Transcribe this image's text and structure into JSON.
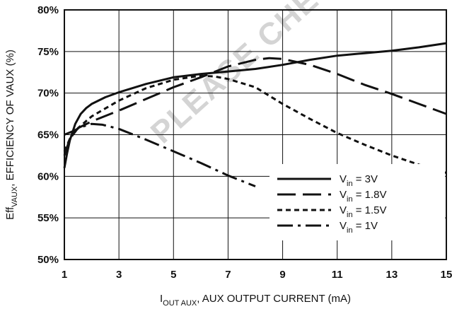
{
  "chart_data": {
    "type": "line",
    "xlabel": "I",
    "xlabel_sub": "OUT  AUX",
    "xlabel_rest": ", AUX OUTPUT CURRENT (mA)",
    "ylabel": "Eff",
    "ylabel_sub": "VAUX",
    "ylabel_rest": ", EFFICIENCY OF VAUX (%)",
    "xlim": [
      1,
      15
    ],
    "ylim": [
      50,
      80
    ],
    "x_ticks": [
      "1",
      "3",
      "5",
      "7",
      "9",
      "11",
      "13",
      "15"
    ],
    "y_ticks": [
      "50%",
      "55%",
      "60%",
      "65%",
      "70%",
      "75%",
      "80%"
    ],
    "grid": true,
    "legend_position": "bottom-right",
    "watermark": "PLEASE CHECK FOR REPRESENTATIVE",
    "series": [
      {
        "name_main": "V",
        "name_sub": "in",
        "name_rest": " = 3V",
        "style": "solid",
        "color": "#111111",
        "x": [
          1.0,
          1.1,
          1.2,
          1.4,
          1.6,
          1.8,
          2.0,
          2.5,
          3.0,
          4.0,
          5.0,
          6.0,
          7.0,
          8.0,
          9.0,
          10.0,
          11.0,
          12.0,
          13.0,
          14.0,
          15.0
        ],
        "y": [
          61.0,
          62.8,
          64.3,
          66.3,
          67.5,
          68.2,
          68.7,
          69.5,
          70.1,
          71.1,
          71.9,
          72.3,
          72.6,
          72.9,
          73.4,
          74.0,
          74.5,
          74.8,
          75.1,
          75.5,
          76.0
        ]
      },
      {
        "name_main": "V",
        "name_sub": "in",
        "name_rest": " = 1.8V",
        "style": "long-dash",
        "color": "#111111",
        "x": [
          1.0,
          1.2,
          1.5,
          2.0,
          3.0,
          4.0,
          5.0,
          6.0,
          7.0,
          8.0,
          8.5,
          9.0,
          10.0,
          11.0,
          12.0,
          13.0,
          14.0,
          15.0
        ],
        "y": [
          62.5,
          64.5,
          65.8,
          66.6,
          67.9,
          69.3,
          70.7,
          71.9,
          73.2,
          74.0,
          74.2,
          74.1,
          73.4,
          72.3,
          71.0,
          69.9,
          68.7,
          67.5
        ]
      },
      {
        "name_main": "V",
        "name_sub": "in",
        "name_rest": " = 1.5V",
        "style": "short-dash",
        "color": "#111111",
        "x": [
          1.0,
          1.2,
          1.5,
          2.0,
          3.0,
          4.0,
          5.0,
          6.0,
          6.5,
          7.0,
          8.0,
          9.0,
          10.0,
          11.0,
          12.0,
          13.0,
          14.0,
          15.0
        ],
        "y": [
          63.0,
          64.5,
          65.8,
          67.2,
          69.1,
          70.6,
          71.6,
          72.1,
          72.0,
          71.7,
          70.7,
          68.7,
          66.9,
          65.2,
          63.8,
          62.5,
          61.4,
          60.4
        ]
      },
      {
        "name_main": "V",
        "name_sub": "in",
        "name_rest": " = 1V",
        "style": "dash-dot",
        "color": "#111111",
        "x": [
          1.0,
          1.3,
          1.6,
          2.0,
          2.4,
          3.0,
          4.0,
          5.0,
          6.0,
          7.0,
          8.0
        ],
        "y": [
          65.0,
          65.4,
          65.9,
          66.3,
          66.2,
          65.7,
          64.4,
          63.0,
          61.6,
          60.1,
          58.8
        ]
      }
    ]
  }
}
